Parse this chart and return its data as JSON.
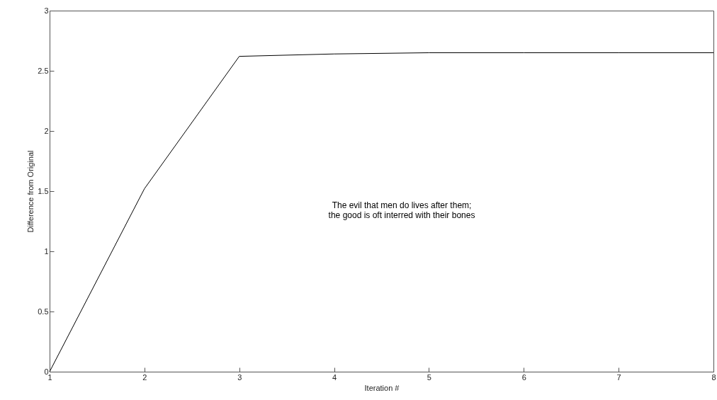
{
  "chart_data": {
    "type": "line",
    "xlabel": "Iteration #",
    "ylabel": "Difference from Original",
    "x": [
      1,
      2,
      3,
      4,
      5,
      6,
      7,
      8
    ],
    "series": [
      {
        "color": "#000000",
        "values": [
          0,
          1.52,
          2.62,
          2.64,
          2.65,
          2.65,
          2.65,
          2.65
        ]
      }
    ],
    "xlim": [
      1,
      8
    ],
    "xticks": [
      1,
      2,
      3,
      4,
      5,
      6,
      7,
      8
    ],
    "ylim": [
      0,
      3
    ],
    "yticks": [
      0,
      0.5,
      1,
      1.5,
      2,
      2.5,
      3
    ],
    "grid": false,
    "marker": "none",
    "line_style": "solid",
    "annotations": [
      "The evil that men do lives after them;\nthe good is oft interred with their bones"
    ]
  }
}
